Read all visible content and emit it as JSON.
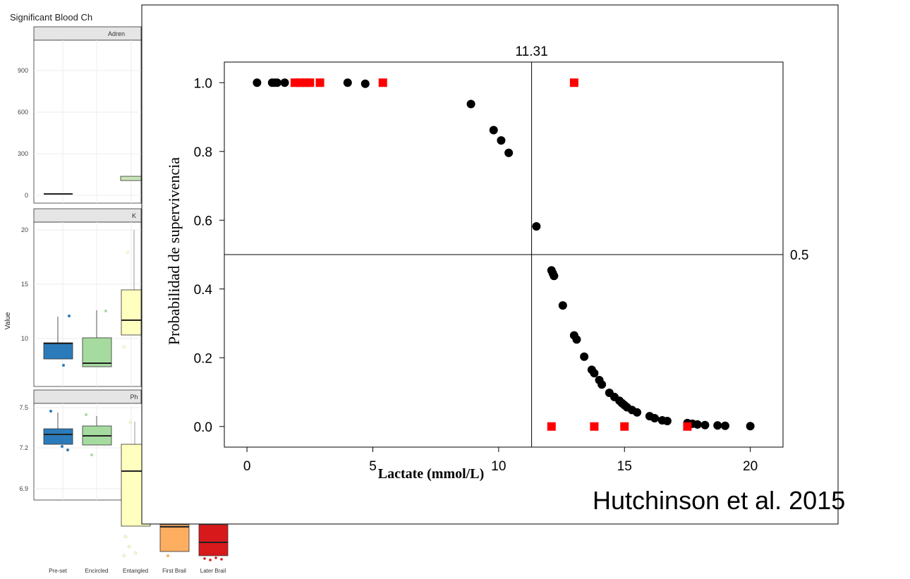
{
  "slide": {
    "citation": "Hutchinson et al.  2015"
  },
  "background_figure": {
    "title": "Significant Blood Ch",
    "ylabel": "Value",
    "panels": [
      {
        "strip": "Adren",
        "ticks": [
          "900",
          "600",
          "300",
          "0"
        ]
      },
      {
        "strip": "K",
        "ticks": [
          "20",
          "15",
          "10"
        ]
      },
      {
        "strip": "Ph",
        "ticks": [
          "7.5",
          "7.2",
          "6.9",
          "6.6"
        ]
      }
    ],
    "categories": [
      "Pre-set",
      "Encircled",
      "Entangled",
      "First Brail",
      "Later Brail"
    ],
    "colors": [
      "#2b7bba",
      "#a6dba0",
      "#ffffbf",
      "#fdae61",
      "#d7191c"
    ]
  },
  "chart_data": {
    "type": "scatter",
    "title": "",
    "xlabel": "Lactate (mmol/L)",
    "ylabel": "Probabilidad de supervivencia",
    "xlim": [
      -0.9,
      21.3
    ],
    "ylim": [
      -0.06,
      1.06
    ],
    "x_ticks": [
      "0",
      "5",
      "10",
      "15",
      "20"
    ],
    "y_ticks": [
      "0.0",
      "0.2",
      "0.4",
      "0.6",
      "0.8",
      "1.0"
    ],
    "grid": false,
    "reference_lines": [
      {
        "orientation": "vertical",
        "value": 11.31,
        "label": "11.31"
      },
      {
        "orientation": "horizontal",
        "value": 0.5,
        "label": "0.5"
      }
    ],
    "series": [
      {
        "marker": "circle",
        "color": "#000000",
        "x": [
          0.4,
          1.0,
          1.1,
          1.2,
          1.5,
          4.0,
          4.7,
          8.9,
          9.8,
          10.1,
          10.4,
          11.5,
          12.1,
          12.15,
          12.2,
          12.55,
          13.0,
          13.1,
          13.4,
          13.7,
          13.8,
          14.0,
          14.1,
          14.4,
          14.6,
          14.8,
          14.9,
          15.0,
          15.1,
          15.3,
          15.5,
          16.0,
          16.2,
          16.5,
          16.7,
          17.5,
          17.7,
          17.9,
          18.2,
          18.7,
          19.0,
          20.0
        ],
        "y": [
          1.0,
          1.0,
          1.0,
          1.0,
          1.0,
          1.0,
          0.997,
          0.938,
          0.862,
          0.832,
          0.796,
          0.582,
          0.454,
          0.446,
          0.438,
          0.352,
          0.265,
          0.253,
          0.203,
          0.165,
          0.155,
          0.135,
          0.122,
          0.098,
          0.086,
          0.075,
          0.068,
          0.062,
          0.056,
          0.048,
          0.041,
          0.03,
          0.024,
          0.018,
          0.016,
          0.01,
          0.008,
          0.006,
          0.004,
          0.003,
          0.002,
          0.001
        ]
      },
      {
        "marker": "square",
        "color": "#ff0000",
        "x": [
          1.9,
          2.1,
          2.3,
          2.5,
          2.9,
          5.4,
          13.0,
          12.1,
          13.8,
          15.0,
          17.5
        ],
        "y": [
          1.0,
          1.0,
          1.0,
          1.0,
          1.0,
          1.0,
          1.0,
          0.0,
          0.0,
          0.0,
          0.0
        ]
      }
    ]
  }
}
